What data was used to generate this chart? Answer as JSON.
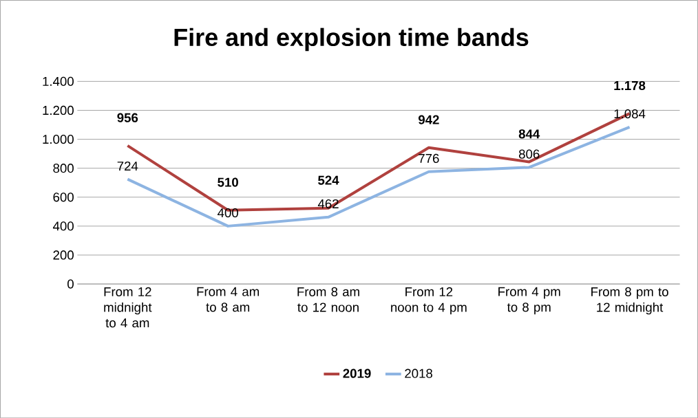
{
  "chart_data": {
    "type": "line",
    "title": "Fire and explosion time bands",
    "categories": [
      "From 12 midnight to 4 am",
      "From 4 am to 8 am",
      "From 8 am to 12 noon",
      "From 12 noon to 4 pm",
      "From 4 pm to 8 pm",
      "From 8 pm to 12 midnight"
    ],
    "series": [
      {
        "name": "2019",
        "color": "#b0413e",
        "values": [
          956,
          510,
          524,
          942,
          844,
          1178
        ],
        "value_labels": [
          "956",
          "510",
          "524",
          "942",
          "844",
          "1.178"
        ]
      },
      {
        "name": "2018",
        "color": "#8db4e2",
        "values": [
          724,
          400,
          462,
          776,
          806,
          1084
        ],
        "value_labels": [
          "724",
          "400",
          "462",
          "776",
          "806",
          "1.084"
        ]
      }
    ],
    "ylim": [
      0,
      1400
    ],
    "yticks": [
      {
        "value": 0,
        "label": "0"
      },
      {
        "value": 200,
        "label": "200"
      },
      {
        "value": 400,
        "label": "400"
      },
      {
        "value": 600,
        "label": "600"
      },
      {
        "value": 800,
        "label": "800"
      },
      {
        "value": 1000,
        "label": "1.000"
      },
      {
        "value": 1200,
        "label": "1.200"
      },
      {
        "value": 1400,
        "label": "1.400"
      }
    ],
    "grid": "y",
    "legend": "bottom",
    "marker": "none",
    "line_style": "solid"
  }
}
